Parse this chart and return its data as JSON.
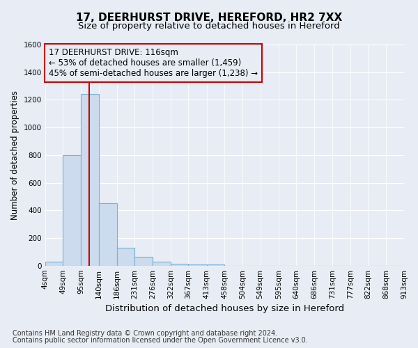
{
  "title": "17, DEERHURST DRIVE, HEREFORD, HR2 7XX",
  "subtitle": "Size of property relative to detached houses in Hereford",
  "xlabel": "Distribution of detached houses by size in Hereford",
  "ylabel": "Number of detached properties",
  "footnote1": "Contains HM Land Registry data © Crown copyright and database right 2024.",
  "footnote2": "Contains public sector information licensed under the Open Government Licence v3.0.",
  "bin_edges": [
    4,
    49,
    95,
    140,
    186,
    231,
    276,
    322,
    367,
    413,
    458,
    504,
    549,
    595,
    640,
    686,
    731,
    777,
    822,
    868,
    913
  ],
  "bar_heights": [
    28,
    800,
    1240,
    450,
    130,
    65,
    28,
    15,
    10,
    10,
    0,
    0,
    0,
    0,
    0,
    0,
    0,
    0,
    0,
    0
  ],
  "bar_color": "#ccdcee",
  "bar_edge_color": "#7bafd4",
  "property_size": 116,
  "annotation_line1": "17 DEERHURST DRIVE: 116sqm",
  "annotation_line2": "← 53% of detached houses are smaller (1,459)",
  "annotation_line3": "45% of semi-detached houses are larger (1,238) →",
  "annotation_box_color": "#cc0000",
  "vline_color": "#cc0000",
  "background_color": "#e8edf5",
  "grid_color": "#ffffff",
  "ylim": [
    0,
    1600
  ],
  "yticks": [
    0,
    200,
    400,
    600,
    800,
    1000,
    1200,
    1400,
    1600
  ],
  "title_fontsize": 11,
  "subtitle_fontsize": 9.5,
  "xlabel_fontsize": 9.5,
  "ylabel_fontsize": 8.5,
  "tick_fontsize": 7.5,
  "annotation_fontsize": 8.5,
  "footnote_fontsize": 7
}
